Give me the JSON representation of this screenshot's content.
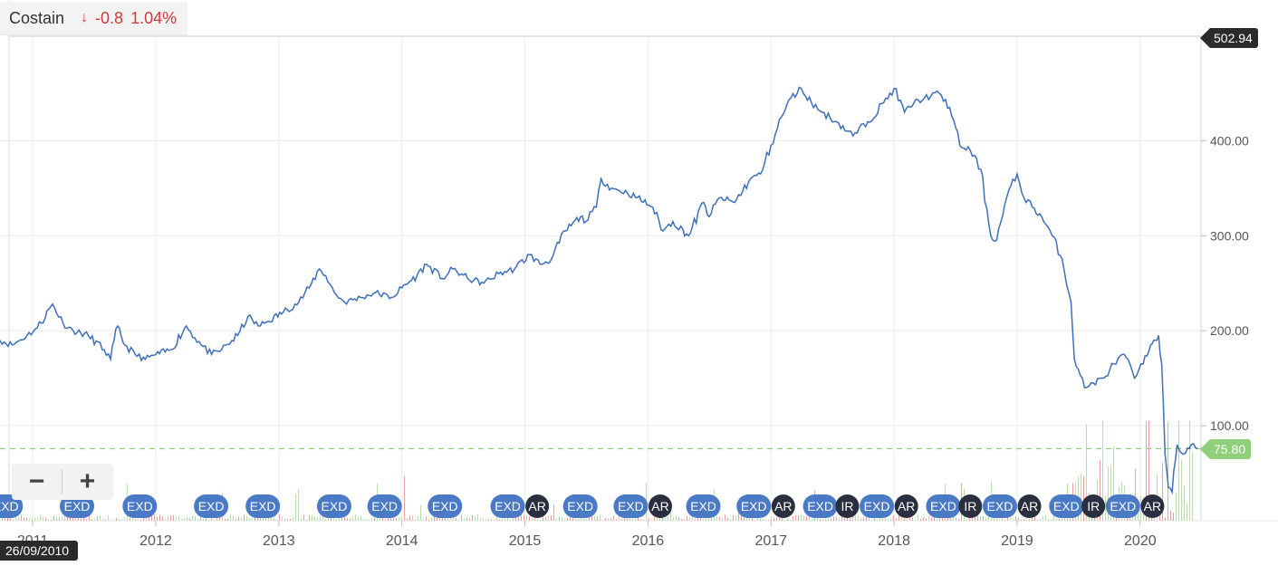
{
  "header": {
    "name": "Costain",
    "arrow": "↓",
    "change": "-0.8",
    "change_pct": "1.04%"
  },
  "flags": {
    "last_value": "502.94",
    "current_value": "75.80"
  },
  "zoom": {
    "minus": "−",
    "plus": "+"
  },
  "cursor_date": "26/09/2010",
  "colors": {
    "line": "#3d6fb8",
    "grid": "#ececec",
    "current_line": "#8fcf7a",
    "exd_marker": "#4a79c6",
    "ar_marker": "#2a2f3f",
    "ir_marker": "#2a2f3f",
    "volume_up": "#b9dfa8",
    "volume_down": "#eaa0a0"
  },
  "chart_data": {
    "type": "line",
    "title": "Costain",
    "xlabel": "",
    "ylabel": "",
    "x_ticks": [
      "2011",
      "2012",
      "2013",
      "2014",
      "2015",
      "2016",
      "2017",
      "2018",
      "2019",
      "2020"
    ],
    "y_ticks": [
      "100.00",
      "200.00",
      "300.00",
      "400.00"
    ],
    "xlim": [
      "2010-09-26",
      "2020-06-30"
    ],
    "ylim": [
      0,
      510
    ],
    "grid": true,
    "current_line_value": 75.8,
    "series": [
      {
        "x": [
          "2010-09-26",
          "2010-11-01",
          "2010-12-15",
          "2011-01-15",
          "2011-03-01",
          "2011-04-01",
          "2011-05-01",
          "2011-06-15",
          "2011-08-01",
          "2011-08-20",
          "2011-09-10",
          "2011-10-01",
          "2011-11-01",
          "2011-12-01",
          "2012-01-01",
          "2012-02-15",
          "2012-04-01",
          "2012-05-15",
          "2012-06-15",
          "2012-07-15",
          "2012-09-01",
          "2012-10-01",
          "2012-11-01",
          "2012-12-01",
          "2013-01-15",
          "2013-03-01",
          "2013-04-01",
          "2013-05-01",
          "2013-05-20",
          "2013-06-15",
          "2013-07-15",
          "2013-09-01",
          "2013-10-15",
          "2013-12-01",
          "2014-01-01",
          "2014-02-15",
          "2014-03-15",
          "2014-05-01",
          "2014-06-01",
          "2014-07-15",
          "2014-09-01",
          "2014-10-15",
          "2014-12-01",
          "2015-01-15",
          "2015-02-15",
          "2015-03-20",
          "2015-05-01",
          "2015-06-15",
          "2015-07-01",
          "2015-08-01",
          "2015-08-15",
          "2015-09-15",
          "2015-11-01",
          "2015-12-01",
          "2016-01-15",
          "2016-02-15",
          "2016-03-15",
          "2016-05-01",
          "2016-06-15",
          "2016-07-01",
          "2016-08-01",
          "2016-09-15",
          "2016-11-01",
          "2016-12-01",
          "2017-01-01",
          "2017-02-01",
          "2017-03-01",
          "2017-04-01",
          "2017-05-01",
          "2017-06-01",
          "2017-07-15",
          "2017-09-01",
          "2017-10-15",
          "2017-12-01",
          "2018-01-01",
          "2018-02-01",
          "2018-03-01",
          "2018-04-01",
          "2018-05-15",
          "2018-06-15",
          "2018-07-15",
          "2018-08-15",
          "2018-09-15",
          "2018-10-15",
          "2018-11-01",
          "2018-12-01",
          "2019-01-01",
          "2019-01-15",
          "2019-02-15",
          "2019-03-15",
          "2019-04-15",
          "2019-05-15",
          "2019-06-10",
          "2019-06-20",
          "2019-07-01",
          "2019-07-20",
          "2019-08-15",
          "2019-09-15",
          "2019-10-15",
          "2019-11-15",
          "2019-12-15",
          "2020-01-10",
          "2020-02-01",
          "2020-02-10",
          "2020-02-25",
          "2020-03-05",
          "2020-03-15",
          "2020-03-25",
          "2020-04-05",
          "2020-04-20",
          "2020-05-10",
          "2020-06-01",
          "2020-06-20"
        ],
        "y": [
          190,
          185,
          195,
          203,
          228,
          208,
          200,
          195,
          180,
          170,
          205,
          185,
          175,
          170,
          175,
          180,
          205,
          185,
          175,
          180,
          195,
          215,
          205,
          210,
          220,
          230,
          245,
          265,
          258,
          240,
          230,
          235,
          240,
          235,
          245,
          258,
          270,
          255,
          265,
          255,
          250,
          260,
          265,
          280,
          270,
          275,
          305,
          320,
          315,
          330,
          360,
          350,
          345,
          340,
          330,
          305,
          315,
          300,
          335,
          320,
          340,
          335,
          360,
          365,
          395,
          425,
          445,
          455,
          440,
          430,
          420,
          405,
          420,
          440,
          455,
          430,
          440,
          445,
          450,
          435,
          395,
          390,
          370,
          300,
          295,
          340,
          365,
          345,
          330,
          320,
          300,
          275,
          230,
          170,
          160,
          140,
          145,
          150,
          165,
          175,
          150,
          165,
          185,
          190,
          195,
          165,
          70,
          35,
          30,
          80,
          70,
          80,
          75.8
        ]
      }
    ]
  },
  "markers": [
    {
      "year": 2010.78,
      "label": "EXD"
    },
    {
      "year": 2011.36,
      "label": "EXD"
    },
    {
      "year": 2011.87,
      "label": "EXD"
    },
    {
      "year": 2012.45,
      "label": "EXD"
    },
    {
      "year": 2012.87,
      "label": "EXD"
    },
    {
      "year": 2013.45,
      "label": "EXD"
    },
    {
      "year": 2013.86,
      "label": "EXD"
    },
    {
      "year": 2014.35,
      "label": "EXD"
    },
    {
      "year": 2014.86,
      "label": "EXD"
    },
    {
      "year": 2015.1,
      "label": "AR"
    },
    {
      "year": 2015.45,
      "label": "EXD"
    },
    {
      "year": 2015.86,
      "label": "EXD"
    },
    {
      "year": 2016.1,
      "label": "AR"
    },
    {
      "year": 2016.45,
      "label": "EXD"
    },
    {
      "year": 2016.86,
      "label": "EXD"
    },
    {
      "year": 2017.1,
      "label": "AR"
    },
    {
      "year": 2017.4,
      "label": "EXD"
    },
    {
      "year": 2017.62,
      "label": "IR"
    },
    {
      "year": 2017.86,
      "label": "EXD"
    },
    {
      "year": 2018.1,
      "label": "AR"
    },
    {
      "year": 2018.4,
      "label": "EXD"
    },
    {
      "year": 2018.62,
      "label": "IR"
    },
    {
      "year": 2018.86,
      "label": "EXD"
    },
    {
      "year": 2019.1,
      "label": "AR"
    },
    {
      "year": 2019.4,
      "label": "EXD"
    },
    {
      "year": 2019.62,
      "label": "IR"
    },
    {
      "year": 2019.86,
      "label": "EXD"
    },
    {
      "year": 2020.1,
      "label": "AR"
    }
  ]
}
